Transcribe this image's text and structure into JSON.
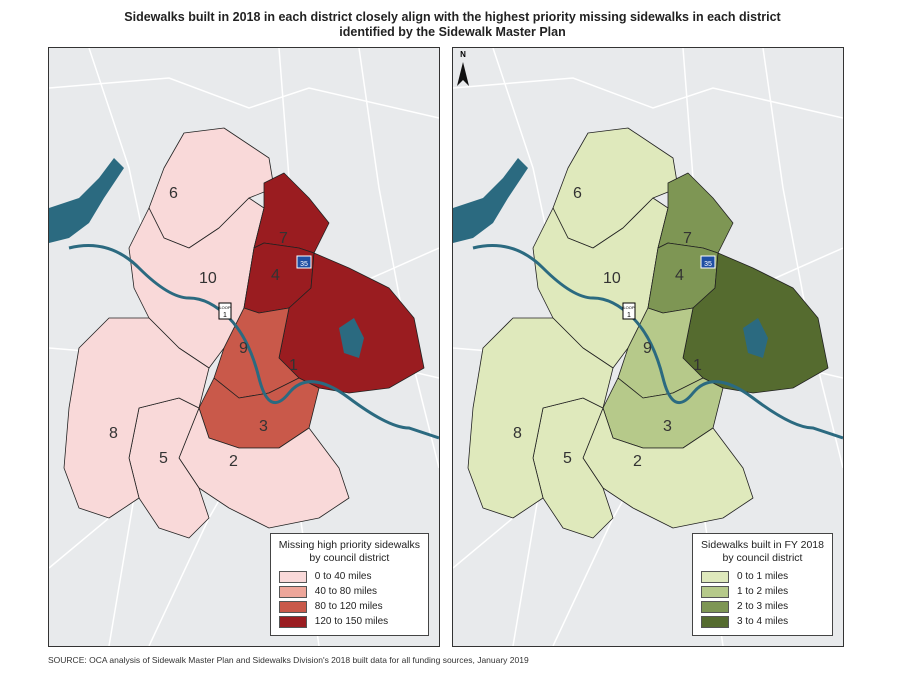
{
  "title_line1": "Sidewalks built in 2018 in each district closely align with the highest priority missing sidewalks in each district",
  "title_line2": "identified by the Sidewalk Master Plan",
  "source": "SOURCE: OCA analysis of Sidewalk Master Plan and Sidewalks Division's 2018 built data for all funding sources, January 2019",
  "north_label": "N",
  "highway_labels": {
    "interstate": "35",
    "loop": "1",
    "loop_word": "LOOP"
  },
  "district_labels": [
    "1",
    "2",
    "3",
    "4",
    "5",
    "6",
    "7",
    "8",
    "9",
    "10"
  ],
  "left_map": {
    "legend_title_line1": "Missing high priority sidewalks",
    "legend_title_line2": "by council district",
    "legend": [
      {
        "label": "0 to 40 miles",
        "color": "#f9d9d9"
      },
      {
        "label": "40 to 80 miles",
        "color": "#eea69a"
      },
      {
        "label": "80 to 120 miles",
        "color": "#c9594a"
      },
      {
        "label": "120 to 150 miles",
        "color": "#9a1c20"
      }
    ],
    "district_class": {
      "1": 3,
      "2": 0,
      "3": 2,
      "4": 3,
      "5": 0,
      "6": 0,
      "7": 3,
      "8": 0,
      "9": 2,
      "10": 0
    }
  },
  "right_map": {
    "legend_title_line1": "Sidewalks built in FY 2018",
    "legend_title_line2": "by council district",
    "legend": [
      {
        "label": "0 to 1 miles",
        "color": "#dfe9bc"
      },
      {
        "label": "1 to 2 miles",
        "color": "#b6c98a"
      },
      {
        "label": "2 to 3 miles",
        "color": "#7e9654"
      },
      {
        "label": "3 to 4 miles",
        "color": "#556b2f"
      }
    ],
    "district_class": {
      "1": 3,
      "2": 0,
      "3": 1,
      "4": 2,
      "5": 0,
      "6": 0,
      "7": 2,
      "8": 0,
      "9": 1,
      "10": 0
    }
  },
  "colors": {
    "water": "#2b6a80",
    "background": "#e8eaec",
    "roads": "#ffffff",
    "boundary": "#222222"
  }
}
